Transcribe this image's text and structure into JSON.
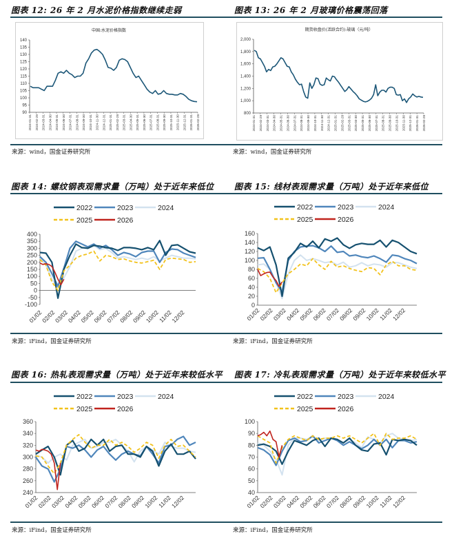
{
  "figures": [
    {
      "title": "图表 12: 26 年 2 月水泥价格指数继续走弱",
      "source": "来源：wind，国金证券研究所"
    },
    {
      "title": "图表 13: 26 年 2 月玻璃价格震荡回落",
      "source": "来源：wind，国金证券研究所"
    },
    {
      "title": "图表 14: 螺纹钢表观需求量（万吨）处于近年来低位",
      "source": "来源：iFind，国金证券研究所"
    },
    {
      "title": "图表 15: 线材表观需求量（万吨）处于近年来低位",
      "source": "来源：iFind，国金证券研究所"
    },
    {
      "title": "图表 16: 热轧表观需求量（万吨）处于近年来较低水平",
      "source": "来源：iFind，国金证券研究所"
    },
    {
      "title": "图表 17: 冷轧表观需求量（万吨）处于近年来较低水平",
      "source": "来源：iFind，国金证券研究所"
    }
  ],
  "colors": {
    "single": "#1b5677",
    "2022": "#15506f",
    "2023": "#4f86bb",
    "2024": "#d3e2ef",
    "2025": "#f2c21b",
    "2026": "#c0231d",
    "rule": "#1f4e5f"
  },
  "chart_data": [
    {
      "type": "line",
      "title": "中国:水泥价格指数",
      "ylim": [
        90,
        140
      ],
      "yticks": [
        90,
        95,
        100,
        105,
        110,
        115,
        120,
        125,
        130,
        135,
        140
      ],
      "xlabels": [
        "2024-01-31",
        "2024-02-29",
        "2024-03-31",
        "2024-04-30",
        "2024-05-31",
        "2024-06-30",
        "2024-07-31",
        "2024-08-31",
        "2024-09-30",
        "2024-10-31",
        "2024-11-30",
        "2024-12-31",
        "2025-01-31",
        "2025-02-28",
        "2025-03-31",
        "2025-04-30",
        "2025-05-31",
        "2025-06-30",
        "2025-07-31",
        "2025-08-31",
        "2025-09-30",
        "2025-10-31",
        "2025-11-30",
        "2025-12-31",
        "2026-01-31",
        "2026-02-28"
      ],
      "series": [
        {
          "name": "中国:水泥价格指数",
          "values": [
            108,
            107,
            107,
            107,
            106,
            105,
            108,
            108,
            108,
            112,
            117,
            118,
            117,
            119,
            117,
            116,
            114,
            115,
            115,
            117,
            124,
            127,
            131,
            133,
            133.5,
            132,
            130,
            126,
            121,
            120.5,
            119,
            121,
            126,
            127,
            126.5,
            125,
            121,
            117,
            114,
            115,
            112,
            109,
            106,
            104,
            103,
            105,
            102.5,
            103,
            105,
            103,
            102.5,
            102.5,
            102,
            102,
            103,
            102.5,
            101,
            99,
            98,
            97.5,
            97.3
          ]
        }
      ]
    },
    {
      "type": "line",
      "title": "期货收盘价(活跃合约):玻璃（元/吨）",
      "ylim": [
        800,
        2000
      ],
      "yticks": [
        800,
        1000,
        1200,
        1400,
        1600,
        1800,
        2000
      ],
      "ytick_labels": [
        "800",
        "1,000",
        "1,200",
        "1,400",
        "1,600",
        "1,800",
        "2,000"
      ],
      "xlabels": [
        "2024-01-31",
        "2024-02-29",
        "2024-03-31",
        "2024-04-30",
        "2024-05-31",
        "2024-06-30",
        "2024-07-31",
        "2024-08-31",
        "2024-09-30",
        "2024-10-31",
        "2024-11-30",
        "2024-12-31",
        "2025-01-31",
        "2025-02-28",
        "2025-03-31",
        "2025-04-30",
        "2025-05-31",
        "2025-06-30",
        "2025-07-31",
        "2025-08-31",
        "2025-09-30",
        "2025-10-31",
        "2025-11-30",
        "2025-12-31",
        "2026-01-31",
        "2026-02-28"
      ],
      "series": [
        {
          "name": "玻璃",
          "values": [
            1820,
            1800,
            1700,
            1680,
            1620,
            1560,
            1470,
            1510,
            1490,
            1550,
            1560,
            1600,
            1650,
            1700,
            1680,
            1620,
            1560,
            1550,
            1470,
            1420,
            1350,
            1300,
            1260,
            1270,
            1150,
            1060,
            1040,
            1290,
            1200,
            1260,
            1370,
            1360,
            1270,
            1250,
            1260,
            1370,
            1340,
            1320,
            1400,
            1390,
            1340,
            1300,
            1250,
            1200,
            1150,
            1180,
            1230,
            1190,
            1150,
            1120,
            1080,
            1030,
            1010,
            990,
            980,
            990,
            1010,
            1040,
            1100,
            1260,
            1080,
            1140,
            1170,
            1170,
            1140,
            1200,
            1220,
            1220,
            1200,
            1100,
            1090,
            1100,
            1000,
            1030,
            970,
            1030,
            1060,
            1110,
            1080,
            1060,
            1070,
            1060,
            1055
          ]
        }
      ]
    },
    {
      "type": "line",
      "title": "螺纹钢表观需求量（万吨）",
      "ylim": [
        -100,
        400
      ],
      "yticks": [
        -100,
        -50,
        0,
        50,
        100,
        150,
        200,
        250,
        300,
        350,
        400
      ],
      "xlabels": [
        "01/02",
        "02/02",
        "03/02",
        "04/02",
        "05/02",
        "06/02",
        "07/02",
        "08/02",
        "09/02",
        "10/02",
        "11/02",
        "12/02"
      ],
      "series": [
        {
          "name": "2022",
          "step_weeks": 2,
          "values": [
            270,
            265,
            200,
            -55,
            150,
            250,
            330,
            305,
            300,
            320,
            315,
            305,
            300,
            285,
            305,
            305,
            300,
            290,
            305,
            290,
            355,
            250,
            320,
            325,
            300,
            275,
            265
          ]
        },
        {
          "name": "2023",
          "step_weeks": 2,
          "values": [
            240,
            200,
            120,
            30,
            160,
            300,
            350,
            330,
            310,
            330,
            300,
            320,
            290,
            250,
            270,
            260,
            240,
            270,
            280,
            280,
            200,
            270,
            295,
            290,
            265,
            250,
            235
          ]
        },
        {
          "name": "2024",
          "step_weeks": 2,
          "values": [
            230,
            180,
            80,
            20,
            90,
            170,
            280,
            300,
            310,
            320,
            290,
            300,
            270,
            230,
            240,
            230,
            220,
            230,
            220,
            240,
            210,
            230,
            250,
            240,
            230,
            230,
            225
          ]
        },
        {
          "name": "2025",
          "step_weeks": 2,
          "values": [
            220,
            180,
            60,
            0,
            140,
            180,
            230,
            250,
            260,
            280,
            210,
            250,
            240,
            220,
            225,
            210,
            200,
            195,
            205,
            215,
            150,
            220,
            230,
            225,
            220,
            200,
            205
          ]
        },
        {
          "name": "2026",
          "step_weeks": 1,
          "values": [
            195,
            185,
            190,
            185,
            170,
            130,
            80,
            40,
            80
          ]
        }
      ]
    },
    {
      "type": "line",
      "title": "线材表观需求量（万吨）",
      "ylim": [
        0,
        160
      ],
      "yticks": [
        0,
        20,
        40,
        60,
        80,
        100,
        120,
        140,
        160
      ],
      "xlabels": [
        "01/02",
        "02/02",
        "03/02",
        "04/02",
        "05/02",
        "06/02",
        "07/02",
        "08/02",
        "09/02",
        "10/02",
        "11/02",
        "12/02"
      ],
      "series": [
        {
          "name": "2022",
          "step_weeks": 2,
          "values": [
            128,
            122,
            130,
            90,
            20,
            105,
            118,
            138,
            130,
            143,
            128,
            148,
            143,
            150,
            135,
            127,
            135,
            138,
            136,
            136,
            145,
            130,
            145,
            140,
            130,
            120,
            115
          ]
        },
        {
          "name": "2023",
          "step_weeks": 2,
          "values": [
            105,
            106,
            80,
            50,
            30,
            100,
            120,
            130,
            132,
            133,
            128,
            120,
            132,
            118,
            120,
            110,
            112,
            108,
            106,
            110,
            104,
            96,
            112,
            110,
            104,
            100,
            93
          ]
        },
        {
          "name": "2024",
          "step_weeks": 2,
          "values": [
            90,
            92,
            80,
            50,
            15,
            70,
            100,
            112,
            100,
            104,
            100,
            95,
            97,
            90,
            96,
            85,
            88,
            95,
            88,
            92,
            90,
            85,
            95,
            95,
            90,
            85,
            82
          ]
        },
        {
          "name": "2025",
          "step_weeks": 2,
          "values": [
            82,
            75,
            60,
            28,
            50,
            70,
            80,
            92,
            88,
            104,
            90,
            80,
            98,
            85,
            88,
            82,
            78,
            75,
            84,
            82,
            68,
            90,
            98,
            88,
            88,
            80,
            78
          ]
        },
        {
          "name": "2026",
          "step_weeks": 1,
          "values": [
            80,
            66,
            70,
            73,
            74,
            63,
            55,
            42,
            52
          ]
        }
      ]
    },
    {
      "type": "line",
      "title": "热轧表观需求量（万吨）",
      "ylim": [
        240,
        360
      ],
      "yticks": [
        240,
        260,
        280,
        300,
        320,
        340,
        360
      ],
      "xlabels": [
        "01/02",
        "02/02",
        "03/02",
        "04/02",
        "05/02",
        "06/02",
        "07/02",
        "08/02",
        "09/02",
        "10/02",
        "11/02",
        "12/02"
      ],
      "series": [
        {
          "name": "2022",
          "step_weeks": 2,
          "values": [
            305,
            312,
            318,
            300,
            270,
            320,
            328,
            310,
            315,
            330,
            320,
            330,
            310,
            318,
            320,
            305,
            305,
            300,
            318,
            310,
            285,
            310,
            322,
            305,
            305,
            310,
            297
          ]
        },
        {
          "name": "2023",
          "step_weeks": 2,
          "values": [
            300,
            285,
            280,
            258,
            280,
            318,
            315,
            320,
            312,
            300,
            312,
            318,
            305,
            295,
            305,
            310,
            305,
            302,
            318,
            305,
            290,
            318,
            320,
            330,
            335,
            320,
            325
          ]
        },
        {
          "name": "2024",
          "step_weeks": 2,
          "values": [
            303,
            300,
            290,
            300,
            305,
            295,
            320,
            325,
            330,
            315,
            318,
            325,
            325,
            330,
            320,
            310,
            292,
            310,
            318,
            312,
            305,
            325,
            318,
            315,
            315,
            310,
            308
          ]
        },
        {
          "name": "2025",
          "step_weeks": 2,
          "values": [
            302,
            300,
            285,
            272,
            290,
            320,
            330,
            338,
            325,
            315,
            320,
            320,
            330,
            320,
            325,
            318,
            308,
            315,
            325,
            320,
            298,
            320,
            330,
            318,
            320,
            310,
            300
          ]
        },
        {
          "name": "2026",
          "step_weeks": 1,
          "values": [
            312,
            310,
            313,
            312,
            310,
            305,
            290,
            245,
            290
          ]
        }
      ]
    },
    {
      "type": "line",
      "title": "冷轧表观需求量（万吨）",
      "ylim": [
        40,
        100
      ],
      "yticks": [
        40,
        50,
        60,
        70,
        80,
        90,
        100
      ],
      "xlabels": [
        "01/02",
        "02/02",
        "03/02",
        "04/02",
        "05/02",
        "06/02",
        "07/02",
        "08/02",
        "09/02",
        "10/02",
        "11/02",
        "12/02"
      ],
      "series": [
        {
          "name": "2022",
          "step_weeks": 2,
          "values": [
            80,
            81,
            79,
            75,
            64,
            75,
            84,
            82,
            80,
            84,
            86,
            79,
            86,
            85,
            82,
            86,
            80,
            76,
            75,
            81,
            82,
            72,
            85,
            84,
            85,
            84,
            80
          ]
        },
        {
          "name": "2023",
          "step_weeks": 2,
          "values": [
            78,
            76,
            72,
            63,
            75,
            84,
            86,
            83,
            84,
            88,
            82,
            84,
            86,
            84,
            80,
            83,
            80,
            77,
            80,
            85,
            80,
            85,
            78,
            84,
            84,
            82,
            83
          ]
        },
        {
          "name": "2024",
          "step_weeks": 2,
          "values": [
            82,
            80,
            75,
            68,
            55,
            80,
            86,
            86,
            85,
            87,
            84,
            86,
            86,
            85,
            82,
            85,
            82,
            78,
            87,
            85,
            82,
            88,
            90,
            86,
            85,
            84,
            85
          ]
        },
        {
          "name": "2025",
          "step_weeks": 2,
          "values": [
            88,
            85,
            82,
            65,
            78,
            85,
            88,
            86,
            84,
            88,
            85,
            86,
            86,
            88,
            86,
            88,
            85,
            82,
            86,
            90,
            80,
            90,
            85,
            86,
            86,
            88,
            85
          ]
        },
        {
          "name": "2026",
          "step_weeks": 1,
          "values": [
            88,
            89,
            91,
            88,
            92,
            85,
            83,
            70,
            80
          ]
        }
      ]
    }
  ]
}
